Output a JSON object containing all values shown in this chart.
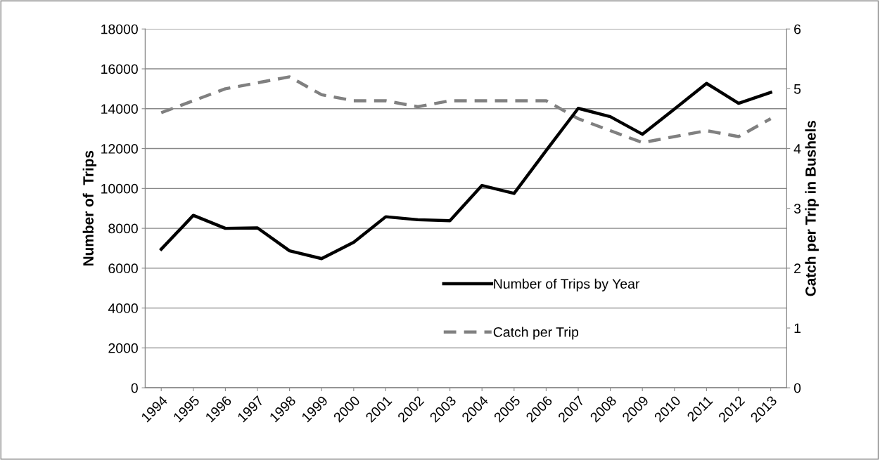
{
  "chart_data": {
    "type": "line",
    "categories": [
      "1994",
      "1995",
      "1996",
      "1997",
      "1998",
      "1999",
      "2000",
      "2001",
      "2002",
      "2003",
      "2004",
      "2005",
      "2006",
      "2007",
      "2008",
      "2009",
      "2010",
      "2011",
      "2012",
      "2013"
    ],
    "series": [
      {
        "name": "Number of Trips by Year",
        "color": "#000000",
        "line_style": "solid",
        "values": [
          6950,
          8650,
          8000,
          8020,
          6870,
          6480,
          7300,
          8580,
          8430,
          8380,
          10150,
          9750,
          11900,
          14020,
          13600,
          12720,
          13980,
          15270,
          14270,
          14820
        ]
      },
      {
        "name": "Catch per Trip",
        "color": "#808080",
        "line_style": "dashed",
        "axis": "y2",
        "values": [
          4.6,
          4.8,
          5.0,
          5.1,
          5.2,
          4.9,
          4.8,
          4.8,
          4.7,
          4.8,
          4.8,
          4.8,
          4.8,
          4.5,
          4.3,
          4.1,
          4.2,
          4.3,
          4.2,
          4.5
        ]
      }
    ],
    "ylabel": "Number of  Trips",
    "y2label": "Catch per Trip in Bushels",
    "ylim": [
      0,
      18000
    ],
    "yticks": [
      0,
      2000,
      4000,
      6000,
      8000,
      10000,
      12000,
      14000,
      16000,
      18000
    ],
    "y2lim": [
      0,
      6
    ],
    "y2ticks": [
      0,
      1,
      2,
      3,
      4,
      5,
      6
    ],
    "grid": "y",
    "legend": "bottom right",
    "marker": "none"
  }
}
